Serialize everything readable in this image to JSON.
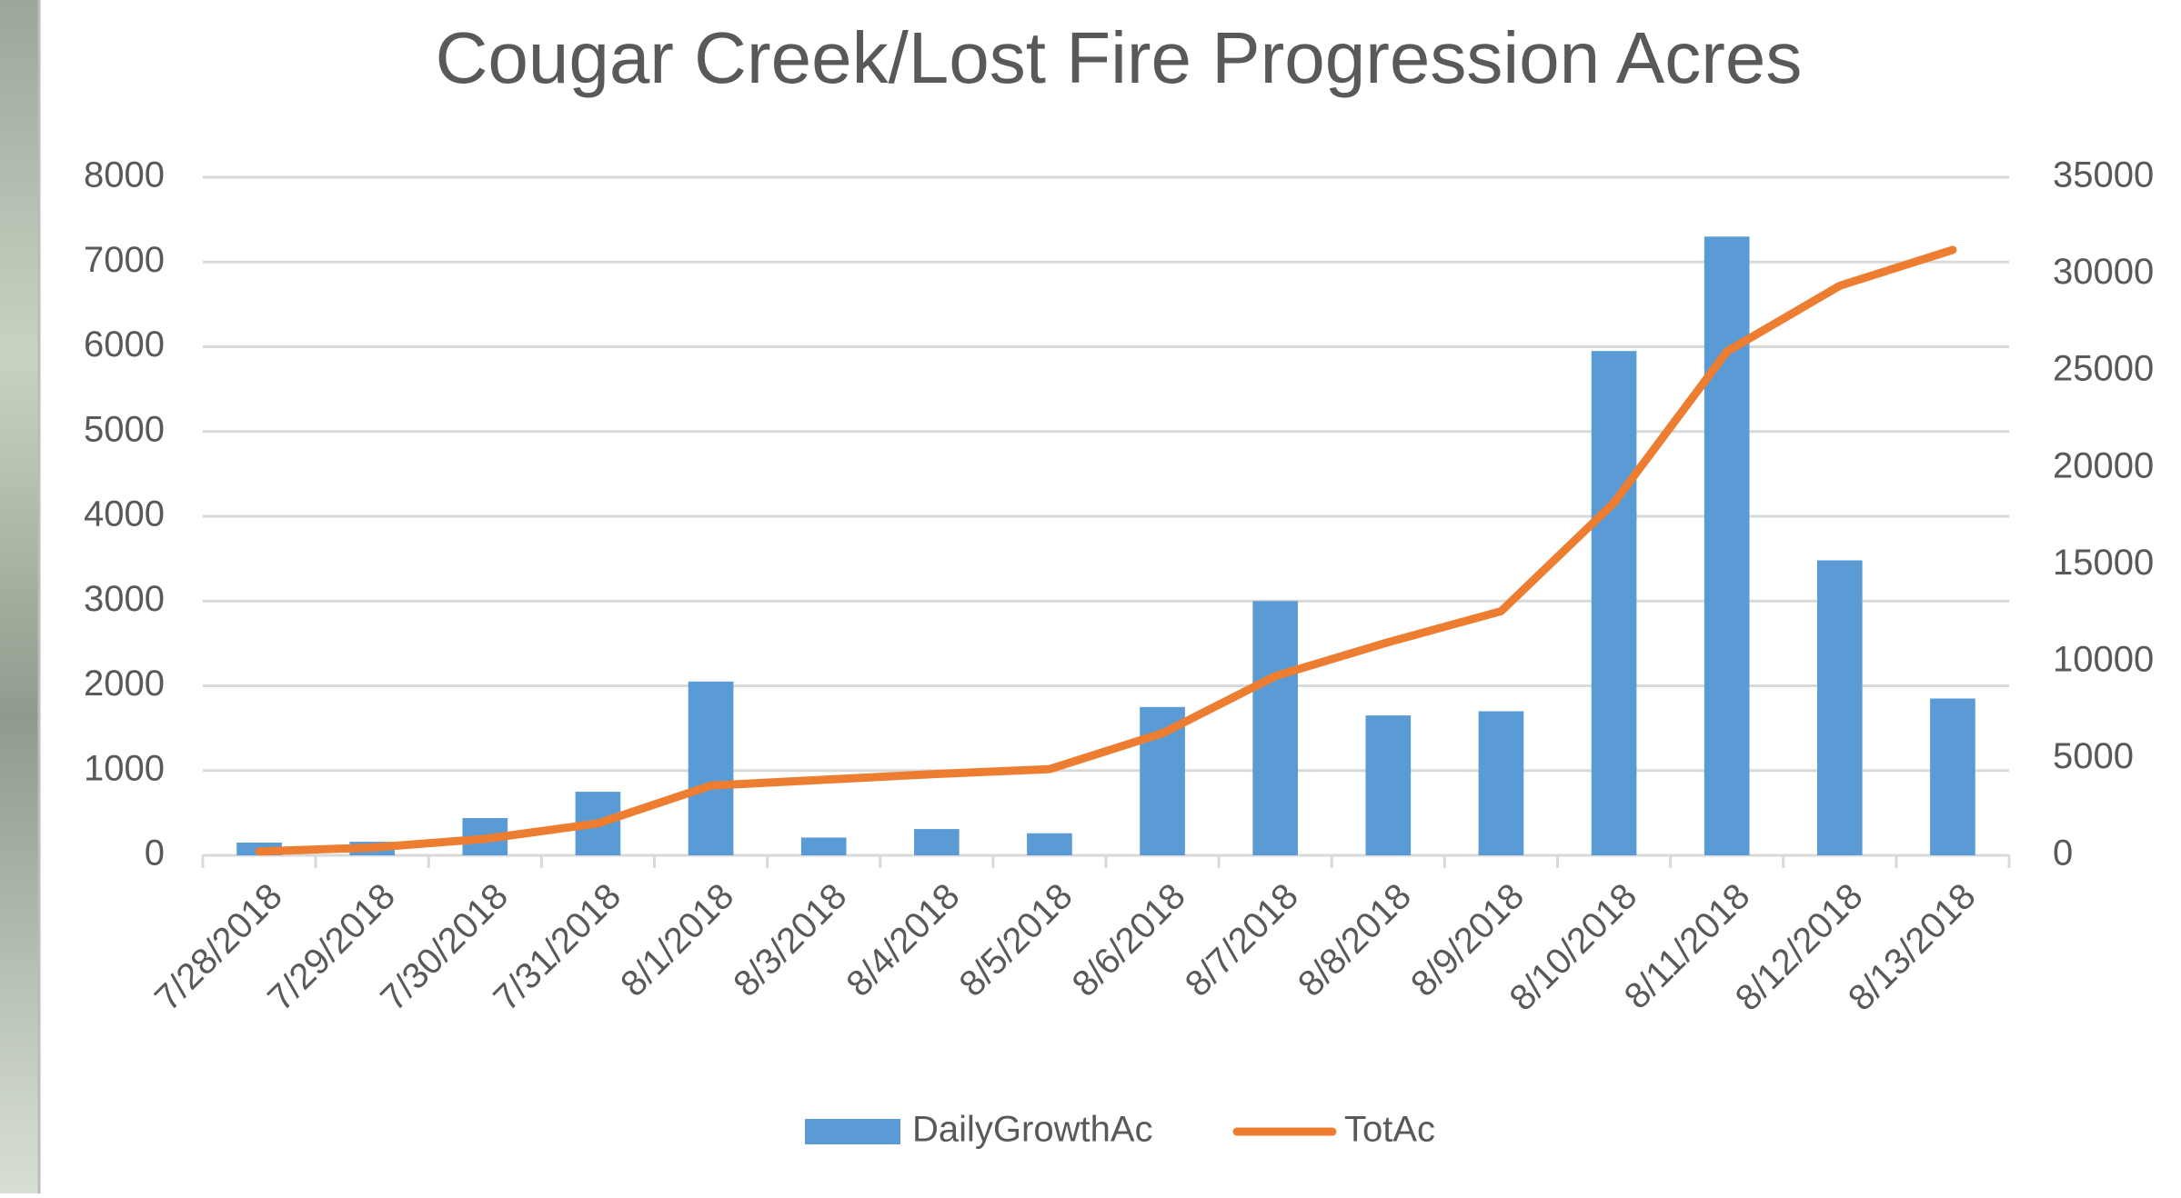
{
  "chart_data": {
    "type": "bar_line",
    "title": "Cougar Creek/Lost Fire Progression Acres",
    "categories": [
      "7/28/2018",
      "7/29/2018",
      "7/30/2018",
      "7/31/2018",
      "8/1/2018",
      "8/3/2018",
      "8/4/2018",
      "8/5/2018",
      "8/6/2018",
      "8/7/2018",
      "8/8/2018",
      "8/9/2018",
      "8/10/2018",
      "8/11/2018",
      "8/12/2018",
      "8/13/2018"
    ],
    "series": [
      {
        "name": "DailyGrowthAc",
        "type": "bar",
        "color": "#5b9bd5",
        "values": [
          150,
          160,
          440,
          750,
          2050,
          210,
          310,
          260,
          1750,
          3000,
          1650,
          1700,
          5950,
          7300,
          3480,
          1850
        ]
      },
      {
        "name": "TotAc",
        "type": "line",
        "color": "#ed7d31",
        "axis": "y2",
        "values": [
          200,
          400,
          850,
          1650,
          3600,
          3900,
          4200,
          4450,
          6300,
          9250,
          11000,
          12600,
          18200,
          26000,
          29400,
          31250
        ]
      }
    ],
    "ylim": [
      0,
      8000
    ],
    "yticks": [
      0,
      1000,
      2000,
      3000,
      4000,
      5000,
      6000,
      7000,
      8000
    ],
    "y2lim": [
      0,
      35000
    ],
    "y2ticks": [
      0,
      5000,
      10000,
      15000,
      20000,
      25000,
      30000,
      35000
    ],
    "grid": true
  }
}
